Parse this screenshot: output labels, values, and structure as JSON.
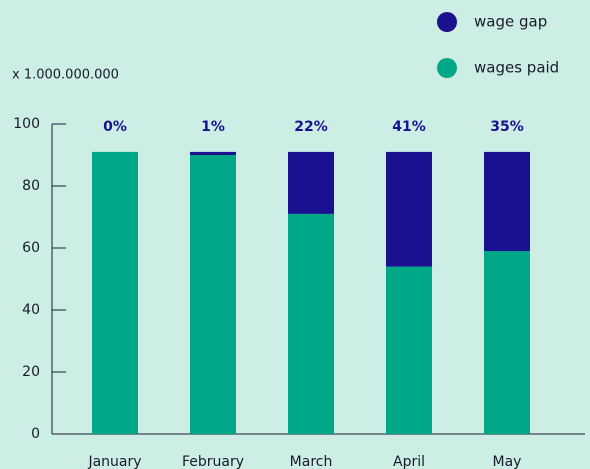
{
  "chart_data": {
    "type": "stacked_bar",
    "axis_unit": "x 1.000.000.000",
    "categories": [
      "January",
      "February",
      "March",
      "April",
      "May"
    ],
    "series": [
      {
        "name": "wages paid",
        "color": "#00a887",
        "values": [
          91,
          90,
          71,
          54,
          59
        ]
      },
      {
        "name": "wage gap",
        "color": "#1a1190",
        "values": [
          0,
          1,
          20,
          37,
          32
        ]
      }
    ],
    "annotations": [
      "0%",
      "1%",
      "22%",
      "41%",
      "35%"
    ],
    "ylim": [
      0,
      100
    ],
    "yticks": [
      0,
      20,
      40,
      60,
      80,
      100
    ],
    "legend": "top-right"
  }
}
